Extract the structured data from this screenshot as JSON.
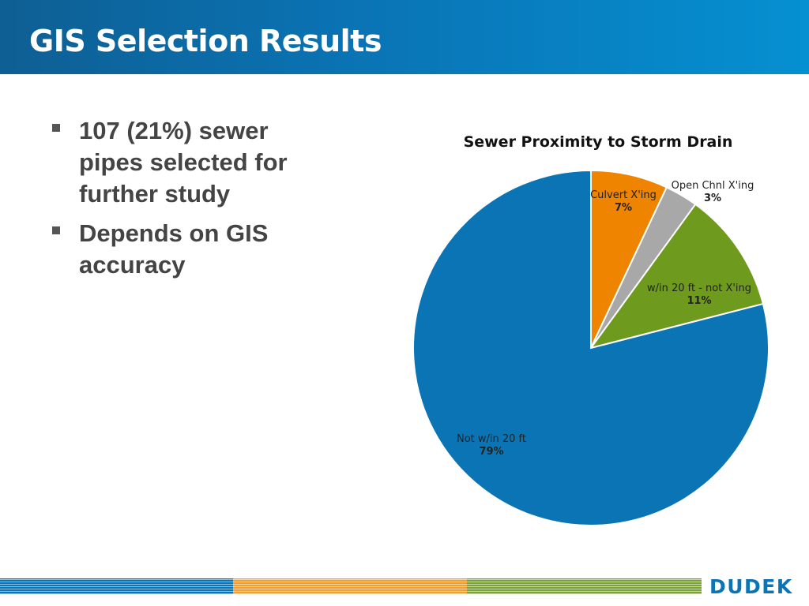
{
  "slide": {
    "title": "GIS Selection Results"
  },
  "bullets": [
    {
      "text": "107 (21%) sewer pipes selected for further study"
    },
    {
      "text": "Depends on GIS accuracy"
    }
  ],
  "chart_data": {
    "type": "pie",
    "title": "Sewer Proximity to Storm Drain",
    "start_angle_deg": 0,
    "direction": "clockwise",
    "slices": [
      {
        "label": "Culvert X'ing",
        "value": 7,
        "value_label": "7%",
        "color": "#ee8400"
      },
      {
        "label": "Open Chnl  X'ing",
        "value": 3,
        "value_label": "3%",
        "color": "#a8a8a8"
      },
      {
        "label": "w/in 20 ft - not X'ing",
        "value": 11,
        "value_label": "11%",
        "color": "#6e9a1d"
      },
      {
        "label": "Not w/in 20 ft",
        "value": 79,
        "value_label": "79%",
        "color": "#0a74b5"
      }
    ]
  },
  "footer": {
    "colors": [
      "#0a74b5",
      "#f0a030",
      "#7ca23a"
    ],
    "logo": "DUDEK"
  }
}
